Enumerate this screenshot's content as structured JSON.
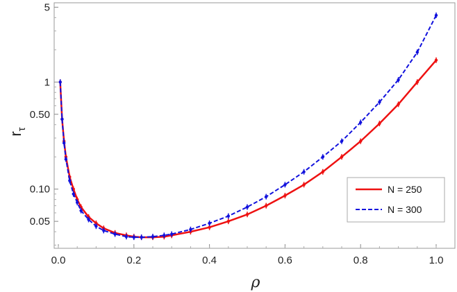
{
  "chart_data": {
    "type": "line",
    "xlabel": "ρ",
    "ylabel": "r",
    "ylabel_sub": "τ",
    "xlim": [
      0,
      1
    ],
    "ylim": [
      0.028,
      5.5
    ],
    "yscale": "log",
    "xticks": [
      0.0,
      0.2,
      0.4,
      0.6,
      0.8,
      1.0
    ],
    "xtick_labels": [
      "0.0",
      "0.2",
      "0.4",
      "0.6",
      "0.8",
      "1.0"
    ],
    "yticks": [
      0.05,
      0.1,
      0.5,
      1,
      5
    ],
    "ytick_labels": [
      "0.05",
      "0.10",
      "0.50",
      "1",
      "5"
    ],
    "grid": false,
    "legend_position": "lower-right",
    "series": [
      {
        "name": "N = 250",
        "color": "#ee1111",
        "line_style": "solid",
        "x": [
          0.005,
          0.01,
          0.015,
          0.02,
          0.03,
          0.04,
          0.05,
          0.06,
          0.08,
          0.1,
          0.12,
          0.15,
          0.18,
          0.2,
          0.22,
          0.25,
          0.28,
          0.3,
          0.35,
          0.4,
          0.45,
          0.5,
          0.55,
          0.6,
          0.65,
          0.7,
          0.75,
          0.8,
          0.85,
          0.9,
          0.95,
          1.0
        ],
        "y": [
          1.0,
          0.45,
          0.28,
          0.2,
          0.13,
          0.1,
          0.08,
          0.068,
          0.055,
          0.048,
          0.043,
          0.039,
          0.037,
          0.036,
          0.0355,
          0.0355,
          0.036,
          0.037,
          0.04,
          0.044,
          0.05,
          0.058,
          0.07,
          0.087,
          0.11,
          0.145,
          0.2,
          0.28,
          0.41,
          0.62,
          1.0,
          1.6
        ]
      },
      {
        "name": "N = 300",
        "color": "#1111dd",
        "line_style": "dashed",
        "x": [
          0.005,
          0.01,
          0.015,
          0.02,
          0.03,
          0.04,
          0.05,
          0.06,
          0.08,
          0.1,
          0.12,
          0.15,
          0.18,
          0.2,
          0.22,
          0.25,
          0.28,
          0.3,
          0.35,
          0.4,
          0.45,
          0.5,
          0.55,
          0.6,
          0.65,
          0.7,
          0.75,
          0.8,
          0.85,
          0.9,
          0.95,
          1.0
        ],
        "y": [
          1.0,
          0.45,
          0.27,
          0.19,
          0.12,
          0.09,
          0.075,
          0.063,
          0.052,
          0.045,
          0.041,
          0.038,
          0.036,
          0.0355,
          0.0355,
          0.036,
          0.037,
          0.038,
          0.042,
          0.048,
          0.056,
          0.068,
          0.085,
          0.11,
          0.145,
          0.2,
          0.28,
          0.42,
          0.65,
          1.05,
          1.9,
          4.2
        ]
      }
    ]
  }
}
